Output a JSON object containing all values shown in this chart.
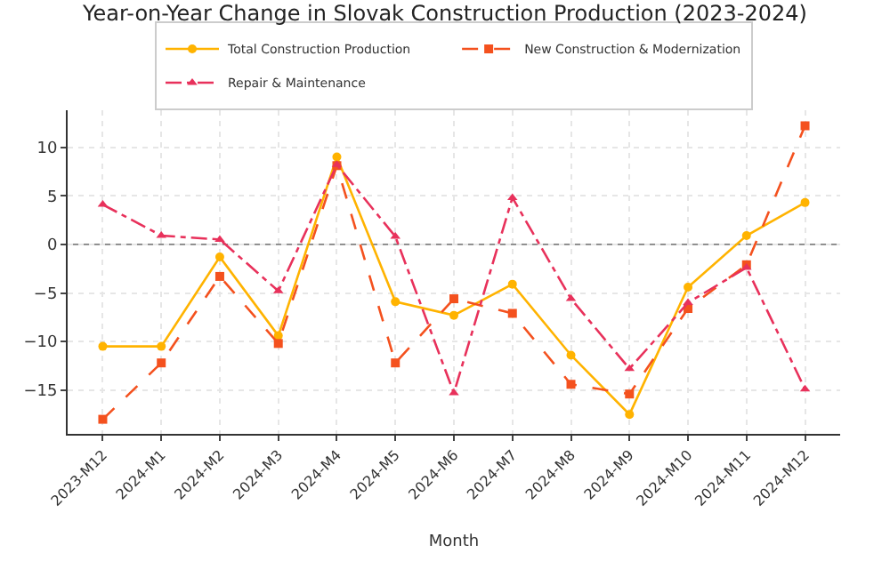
{
  "chart_data": {
    "type": "line",
    "title": "Year-on-Year Change in Slovak Construction Production (2023-2024)",
    "xlabel": "Month",
    "categories": [
      "2023-M12",
      "2024-M1",
      "2024-M2",
      "2024-M3",
      "2024-M4",
      "2024-M5",
      "2024-M6",
      "2024-M7",
      "2024-M8",
      "2024-M9",
      "2024-M10",
      "2024-M11",
      "2024-M12"
    ],
    "series": [
      {
        "name": "Total Construction Production",
        "color": "#ffb300",
        "marker": "circle",
        "line_style": "solid",
        "values": [
          -10.5,
          -10.5,
          -1.3,
          -9.4,
          9.0,
          -5.9,
          -7.3,
          -4.1,
          -11.4,
          -17.5,
          -4.4,
          0.9,
          4.3
        ]
      },
      {
        "name": "New Construction & Modernization",
        "color": "#f4511e",
        "marker": "square",
        "line_style": "dashed",
        "values": [
          -18.0,
          -12.2,
          -3.3,
          -10.2,
          8.1,
          -12.2,
          -5.6,
          -7.1,
          -14.4,
          -15.4,
          -6.6,
          -2.1,
          12.2
        ]
      },
      {
        "name": "Repair & Maintenance",
        "color": "#e8315b",
        "marker": "triangle",
        "line_style": "dashdot",
        "values": [
          4.1,
          0.9,
          0.5,
          -4.8,
          8.2,
          0.8,
          -15.3,
          4.8,
          -5.6,
          -12.8,
          -6.0,
          -2.4,
          -14.9
        ]
      }
    ],
    "ylim": [
      -19.5,
      13.8
    ],
    "yticks": [
      -15,
      -10,
      -5,
      0,
      5,
      10
    ],
    "ref_lines": [
      {
        "axis": "y",
        "value": 0,
        "color": "#808080",
        "line_style": "solid"
      }
    ],
    "grid": true,
    "legend": "top"
  }
}
